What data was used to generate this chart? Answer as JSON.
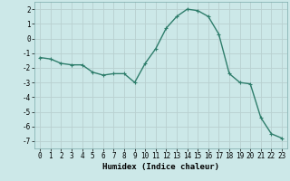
{
  "x": [
    0,
    1,
    2,
    3,
    4,
    5,
    6,
    7,
    8,
    9,
    10,
    11,
    12,
    13,
    14,
    15,
    16,
    17,
    18,
    19,
    20,
    21,
    22,
    23
  ],
  "y": [
    -1.3,
    -1.4,
    -1.7,
    -1.8,
    -1.8,
    -2.3,
    -2.5,
    -2.4,
    -2.4,
    -3.0,
    -1.7,
    -0.7,
    0.7,
    1.5,
    2.0,
    1.9,
    1.5,
    0.3,
    -2.4,
    -3.0,
    -3.1,
    -5.4,
    -6.5,
    -6.8
  ],
  "line_color": "#2e7d6b",
  "marker": "+",
  "marker_size": 3,
  "bg_color": "#cce8e8",
  "grid_color": "#b8d0d0",
  "xlabel": "Humidex (Indice chaleur)",
  "xlim": [
    -0.5,
    23.5
  ],
  "ylim": [
    -7.5,
    2.5
  ],
  "yticks": [
    -7,
    -6,
    -5,
    -4,
    -3,
    -2,
    -1,
    0,
    1,
    2
  ],
  "xticks": [
    0,
    1,
    2,
    3,
    4,
    5,
    6,
    7,
    8,
    9,
    10,
    11,
    12,
    13,
    14,
    15,
    16,
    17,
    18,
    19,
    20,
    21,
    22,
    23
  ],
  "xlabel_fontsize": 6.5,
  "tick_fontsize": 5.5,
  "line_width": 1.0
}
